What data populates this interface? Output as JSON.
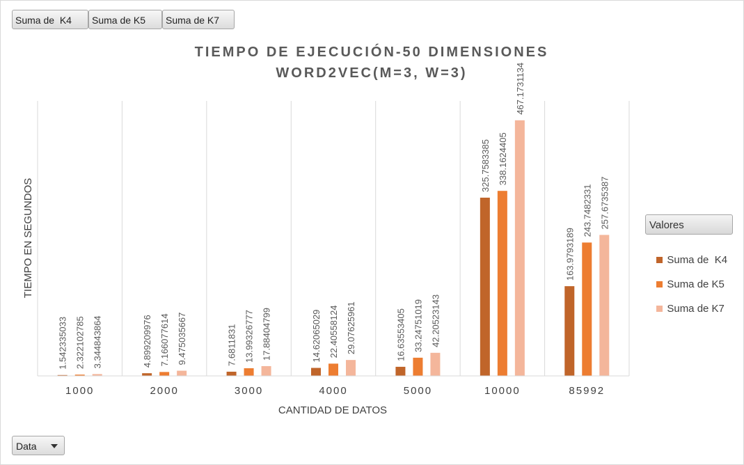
{
  "field_buttons": [
    "Suma de  K4",
    "Suma de K5",
    "Suma de K7"
  ],
  "data_button": "Data",
  "legend_title": "Valores",
  "chart_data": {
    "type": "bar",
    "title": "TIEMPO DE EJECUCIÓN-50 DIMENSIONES",
    "subtitle": "WORD2VEC(M=3, W=3)",
    "xlabel": "CANTIDAD DE DATOS",
    "ylabel": "TIEMPO EN SEGUNDOS",
    "categories": [
      "1000",
      "2000",
      "3000",
      "4000",
      "5000",
      "10000",
      "85992"
    ],
    "series": [
      {
        "name": "Suma de  K4",
        "color": "#c0652a",
        "values": [
          1.542335033,
          4.899209976,
          7.6811831,
          14.62065029,
          16.63553405,
          325.7583385,
          163.9793189
        ],
        "labels": [
          "1.542335033",
          "4.899209976",
          "7.6811831",
          "14.62065029",
          "16.63553405",
          "325.7583385",
          "163.9793189"
        ]
      },
      {
        "name": "Suma de K5",
        "color": "#ed7d31",
        "values": [
          2.322102785,
          7.166077614,
          13.99326777,
          22.40558124,
          33.24751019,
          338.1624405,
          243.7482331
        ],
        "labels": [
          "2.322102785",
          "7.166077614",
          "13.99326777",
          "22.40558124",
          "33.24751019",
          "338.1624405",
          "243.7482331"
        ]
      },
      {
        "name": "Suma de K7",
        "color": "#f4b69b",
        "values": [
          3.344843864,
          9.475035667,
          17.88404799,
          29.07625961,
          42.20523143,
          467.1731134,
          257.6735387
        ],
        "labels": [
          "3.344843864",
          "9.475035667",
          "17.88404799",
          "29.07625961",
          "42.20523143",
          "467.1731134",
          "257.6735387"
        ]
      }
    ],
    "ylim": [
      0,
      500
    ],
    "grid": "vertical",
    "legend": "right"
  }
}
